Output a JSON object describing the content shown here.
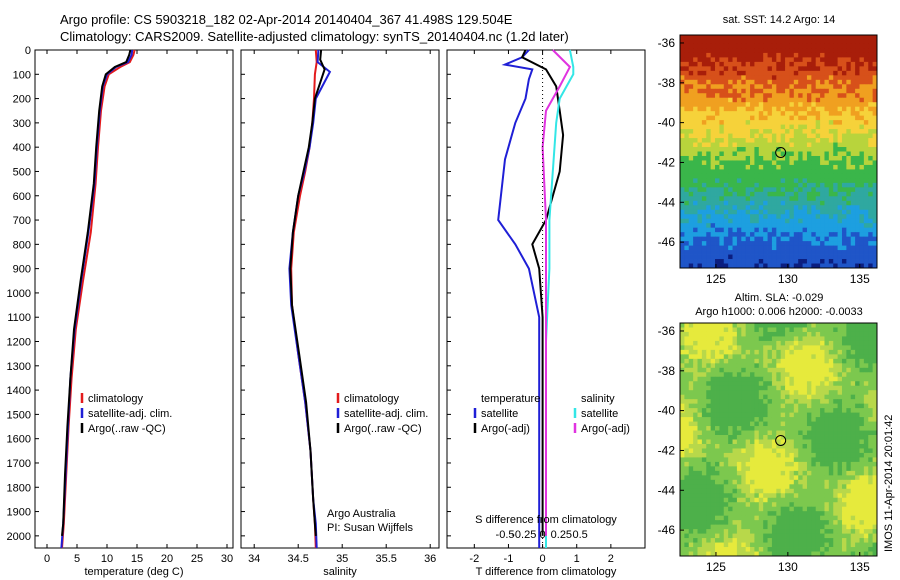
{
  "header": {
    "line1": "Argo profile: CS 5903218_182 02-Apr-2014 20140404_367 41.498S 129.504E",
    "line2": "Climatology: CARS2009. Satellite-adjusted climatology: synTS_20140404.nc (1.2d later)"
  },
  "credits": {
    "line1": "Argo Australia",
    "line2": "PI: Susan Wijffels"
  },
  "colors": {
    "clim": "#e31a1c",
    "sat": "#1f1fd6",
    "argo": "#000000",
    "salsat": "#33e6e6",
    "salargo": "#e033e0"
  },
  "chart_data": [
    {
      "type": "line",
      "xlabel": "temperature (deg C)",
      "ylim": [
        2050,
        0
      ],
      "xlim": [
        -2,
        31
      ],
      "xticks": [
        "0",
        "5",
        "10",
        "15",
        "20",
        "25",
        "30"
      ],
      "yticks": [
        "0",
        "100",
        "200",
        "300",
        "400",
        "500",
        "600",
        "700",
        "800",
        "900",
        "1000",
        "1100",
        "1200",
        "1300",
        "1400",
        "1500",
        "1600",
        "1700",
        "1800",
        "1900",
        "2000"
      ],
      "legend": [
        "climatology",
        "satellite-adj. clim.",
        "Argo(..raw -QC)"
      ],
      "series": [
        {
          "name": "climatology",
          "color": "#e31a1c",
          "x": [
            14.6,
            14.4,
            13.8,
            12.2,
            10.3,
            9.6,
            9.0,
            8.5,
            8.1,
            7.7,
            7.3,
            6.0,
            4.8,
            4.1,
            3.6,
            3.2,
            2.8,
            2.5
          ],
          "y": [
            0,
            20,
            50,
            70,
            100,
            150,
            250,
            400,
            550,
            650,
            750,
            950,
            1150,
            1350,
            1550,
            1750,
            1950,
            2050
          ]
        },
        {
          "name": "satellite-adj. clim.",
          "color": "#1f1fd6",
          "x": [
            14.2,
            14.1,
            13.5,
            11.5,
            10.0,
            9.3,
            8.8,
            8.3,
            7.9,
            7.4,
            6.9,
            5.7,
            4.6,
            3.9,
            3.5,
            3.1,
            2.7,
            2.4
          ],
          "y": [
            0,
            20,
            50,
            70,
            100,
            150,
            250,
            400,
            550,
            650,
            750,
            950,
            1150,
            1350,
            1550,
            1750,
            1950,
            2050
          ]
        },
        {
          "name": "Argo(..raw -QC)",
          "color": "#000000",
          "x": [
            13.9,
            13.7,
            13.2,
            11.3,
            9.8,
            9.2,
            8.7,
            8.2,
            7.8,
            7.3,
            6.8,
            5.6,
            4.5,
            3.9,
            3.4,
            3.0,
            2.7,
            2.5
          ],
          "y": [
            0,
            20,
            50,
            70,
            100,
            150,
            250,
            400,
            550,
            650,
            750,
            950,
            1150,
            1350,
            1550,
            1750,
            1950,
            2000
          ]
        }
      ]
    },
    {
      "type": "line",
      "xlabel": "salinity",
      "ylim": [
        2050,
        0
      ],
      "xlim": [
        33.85,
        36.1
      ],
      "xticks": [
        "34",
        "34.5",
        "35",
        "35.5",
        "36"
      ],
      "legend": [
        "climatology",
        "satellite-adj. clim.",
        "Argo(..raw -QC)"
      ],
      "series": [
        {
          "name": "climatology",
          "color": "#e31a1c",
          "x": [
            34.7,
            34.71,
            34.69,
            34.68,
            34.66,
            34.63,
            34.58,
            34.52,
            34.45,
            34.42,
            34.43,
            34.5,
            34.58,
            34.64,
            34.67,
            34.69,
            34.7
          ],
          "y": [
            0,
            50,
            100,
            200,
            300,
            400,
            500,
            600,
            750,
            900,
            1050,
            1250,
            1450,
            1650,
            1850,
            1950,
            2050
          ]
        },
        {
          "name": "satellite-adj. clim.",
          "color": "#1f1fd6",
          "x": [
            34.73,
            34.72,
            34.86,
            34.7,
            34.67,
            34.63,
            34.57,
            34.5,
            34.44,
            34.4,
            34.42,
            34.5,
            34.58,
            34.64,
            34.67,
            34.7,
            34.71
          ],
          "y": [
            0,
            50,
            90,
            200,
            300,
            400,
            500,
            600,
            750,
            900,
            1050,
            1250,
            1450,
            1650,
            1850,
            1950,
            2050
          ]
        },
        {
          "name": "Argo(..raw -QC)",
          "color": "#000000",
          "x": [
            34.76,
            34.75,
            34.8,
            34.69,
            34.66,
            34.62,
            34.56,
            34.5,
            34.44,
            34.41,
            34.43,
            34.51,
            34.59,
            34.64,
            34.67,
            34.69,
            34.7
          ],
          "y": [
            0,
            40,
            80,
            200,
            300,
            400,
            500,
            600,
            750,
            900,
            1050,
            1250,
            1450,
            1650,
            1850,
            1950,
            2000
          ]
        }
      ]
    },
    {
      "type": "line",
      "xlabel": "T difference from climatology",
      "toplabel": "S difference from climatology",
      "ylim": [
        2050,
        0
      ],
      "xlim": [
        -2.8,
        3.0
      ],
      "xticks": [
        "-2",
        "-1",
        "0",
        "1",
        "2"
      ],
      "topticks": [
        "-0.5",
        "-0.25",
        "0",
        "0.25",
        "0.5"
      ],
      "legend": {
        "temperature": {
          "heading": "temperature",
          "items": [
            "satellite",
            "Argo(-adj)"
          ]
        },
        "salinity": {
          "heading": "salinity",
          "items": [
            "satellite",
            "Argo(-adj)"
          ]
        }
      },
      "series": [
        {
          "name": "satellite",
          "color": "#1f1fd6",
          "x": [
            -0.4,
            -0.6,
            -1.1,
            -0.3,
            -0.4,
            -0.5,
            -0.8,
            -1.1,
            -1.3,
            -0.8,
            -0.4,
            -0.1,
            -0.1,
            -0.1,
            -0.1
          ],
          "y": [
            0,
            30,
            60,
            80,
            120,
            200,
            300,
            450,
            700,
            800,
            900,
            1100,
            1400,
            1700,
            2050
          ]
        },
        {
          "name": "Argo(-adj)",
          "color": "#000000",
          "x": [
            -0.5,
            -0.6,
            0.1,
            0.4,
            0.5,
            0.6,
            0.5,
            0.1,
            -0.3,
            -0.1,
            0.0,
            0.0,
            0.0
          ],
          "y": [
            0,
            30,
            80,
            150,
            250,
            350,
            500,
            700,
            800,
            900,
            1100,
            1500,
            2000
          ]
        },
        {
          "name": "salinity satellite",
          "color": "#33e6e6",
          "x": [
            0.8,
            0.9,
            0.9,
            0.5,
            0.4,
            0.3,
            0.2,
            0.2,
            0.1,
            0.1,
            0.1
          ],
          "y": [
            0,
            70,
            100,
            200,
            300,
            500,
            700,
            900,
            1200,
            1600,
            2050
          ]
        },
        {
          "name": "salinity Argo(-adj)",
          "color": "#e033e0",
          "x": [
            0.3,
            0.8,
            0.5,
            0.1,
            0.0,
            0.1,
            0.1,
            0.1,
            0.1
          ],
          "y": [
            0,
            70,
            150,
            250,
            400,
            700,
            1000,
            1500,
            2000
          ]
        }
      ]
    },
    {
      "type": "heatmap",
      "title": "sat. SST: 14.2  Argo: 14",
      "xticks": [
        "125",
        "130",
        "135"
      ],
      "yticks": [
        "-36",
        "-38",
        "-40",
        "-42",
        "-44",
        "-46"
      ],
      "xlim": [
        122.5,
        136.2
      ],
      "ylim": [
        -47.3,
        -35.6
      ],
      "marker": {
        "lon": 129.5,
        "lat": -41.5
      }
    },
    {
      "type": "heatmap",
      "title": "Altim. SLA: -0.029",
      "subtitle": "Argo h1000: 0.006 h2000: -0.0033",
      "xticks": [
        "125",
        "130",
        "135"
      ],
      "yticks": [
        "-36",
        "-38",
        "-40",
        "-42",
        "-44",
        "-46"
      ],
      "xlim": [
        122.5,
        136.2
      ],
      "ylim": [
        -47.3,
        -35.6
      ],
      "marker": {
        "lon": 129.5,
        "lat": -41.5
      }
    }
  ],
  "imos_label": "IMOS 11-Apr-2014 20:01:42"
}
